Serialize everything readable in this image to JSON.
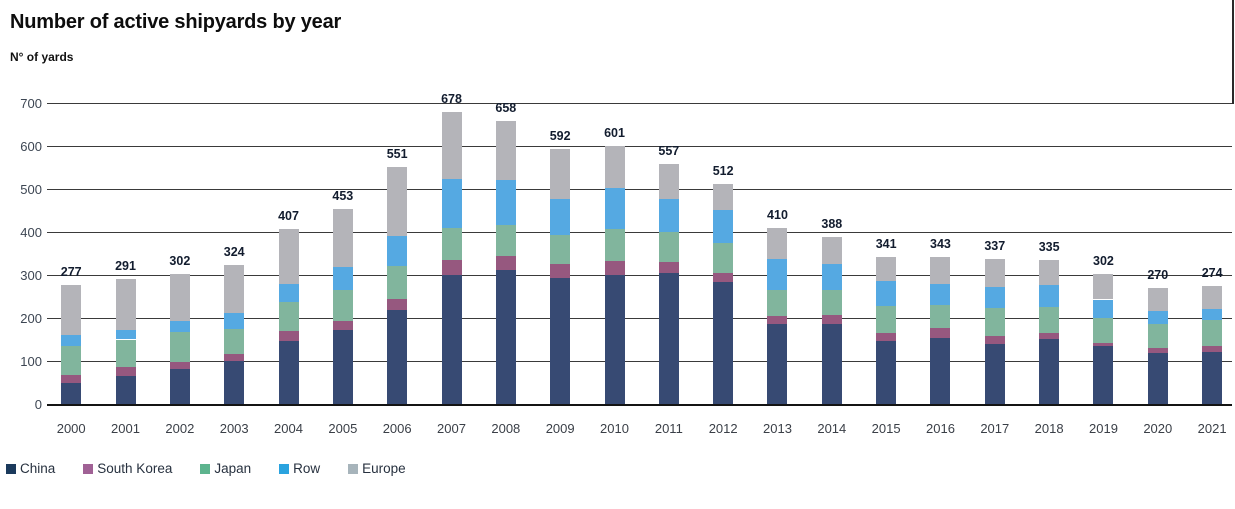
{
  "page": {
    "title": "Number of active shipyards by year",
    "units_label": "N° of yards"
  },
  "chart_data": {
    "type": "bar",
    "stacked": true,
    "title": "Number of active shipyards by year",
    "ylabel": "N° of yards",
    "xlabel": "",
    "categories": [
      "2000",
      "2001",
      "2002",
      "2003",
      "2004",
      "2005",
      "2006",
      "2007",
      "2008",
      "2009",
      "2010",
      "2011",
      "2012",
      "2013",
      "2014",
      "2015",
      "2016",
      "2017",
      "2018",
      "2019",
      "2020",
      "2021"
    ],
    "series": [
      {
        "name": "China",
        "color": "#374a73",
        "legend_color": "#1b3a5c",
        "values": [
          48,
          64,
          81,
          101,
          147,
          172,
          218,
          300,
          311,
          293,
          300,
          305,
          283,
          185,
          185,
          147,
          153,
          140,
          151,
          135,
          118,
          122
        ]
      },
      {
        "name": "South Korea",
        "color": "#96587f",
        "legend_color": "#a06195",
        "values": [
          20,
          21,
          17,
          16,
          22,
          21,
          26,
          35,
          33,
          33,
          32,
          25,
          21,
          19,
          21,
          18,
          23,
          18,
          15,
          7,
          12,
          12
        ]
      },
      {
        "name": "Japan",
        "color": "#81b59d",
        "legend_color": "#5db48e",
        "values": [
          67,
          65,
          70,
          58,
          69,
          71,
          78,
          75,
          73,
          68,
          74,
          69,
          70,
          62,
          59,
          63,
          55,
          65,
          60,
          59,
          55,
          61
        ]
      },
      {
        "name": "Row",
        "color": "#55a9e2",
        "legend_color": "#2aa3df",
        "values": [
          26,
          21,
          24,
          36,
          40,
          55,
          69,
          113,
          104,
          83,
          97,
          77,
          77,
          72,
          60,
          57,
          48,
          49,
          50,
          42,
          31,
          25
        ]
      },
      {
        "name": "Europe",
        "color": "#b4b4b9",
        "legend_color": "#a7b4bb",
        "values": [
          116,
          120,
          110,
          113,
          129,
          134,
          160,
          155,
          137,
          115,
          98,
          81,
          61,
          72,
          63,
          56,
          64,
          65,
          59,
          59,
          54,
          54
        ]
      }
    ],
    "totals": [
      277,
      291,
      302,
      324,
      407,
      453,
      551,
      678,
      658,
      592,
      601,
      557,
      512,
      410,
      388,
      341,
      343,
      337,
      335,
      302,
      270,
      274
    ],
    "ylim": [
      0,
      700
    ],
    "yticks": [
      0,
      100,
      200,
      300,
      400,
      500,
      600,
      700
    ],
    "grid": true,
    "legend_position": "bottom-left"
  }
}
